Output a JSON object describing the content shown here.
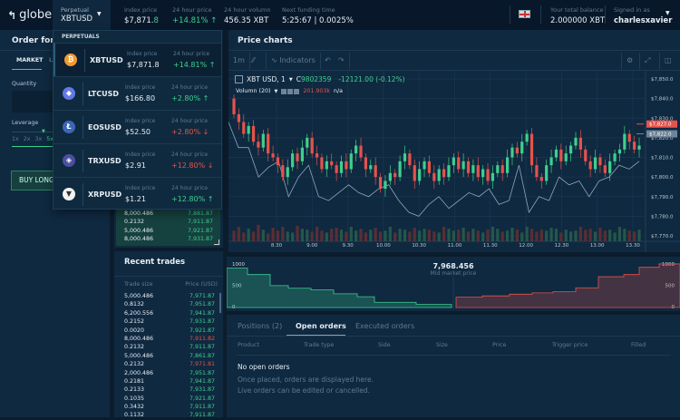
{
  "topbar": {
    "logo": "globe",
    "selector": {
      "label": "Perpetual",
      "value": "XBTUSD"
    },
    "stats": [
      {
        "label": "Index price",
        "value_main": "$7,871.",
        "value_tail": "8"
      },
      {
        "label": "24 hour price",
        "value": "+14.81% ↑"
      },
      {
        "label": "24 hour volumn",
        "value": "456.35 XBT"
      },
      {
        "label": "Next funding time",
        "value": "5:25:67 | 0.0025%"
      }
    ],
    "balance": {
      "label": "Your total balance",
      "value": "2.000000 XBT"
    },
    "user": {
      "label": "Signed in as",
      "value": "charlesxavier"
    }
  },
  "dropdown": {
    "header": "PERPETUALS",
    "items": [
      {
        "symbol": "XBTUSD",
        "index_label": "Index price",
        "index": "$7,871.8",
        "change_label": "24 hour price",
        "change": "+14.81%",
        "arrow": "↑",
        "dir": "up",
        "icon": "bitcoin-icon",
        "glyph": "₿",
        "color": "#f29a2e"
      },
      {
        "symbol": "LTCUSD",
        "index_label": "Index price",
        "index": "$166.80",
        "change_label": "24 hour price",
        "change": "+2.80%",
        "arrow": "↑",
        "dir": "up",
        "icon": "ethereum-icon",
        "glyph": "◆",
        "color": "#6479e6"
      },
      {
        "symbol": "EOSUSD",
        "index_label": "Index price",
        "index": "$52.50",
        "change_label": "24 hour price",
        "change": "+2.80%",
        "arrow": "↓",
        "dir": "down",
        "icon": "litecoin-icon",
        "glyph": "Ł",
        "color": "#3d66b8"
      },
      {
        "symbol": "TRXUSD",
        "index_label": "Index price",
        "index": "$2.91",
        "change_label": "24 hour price",
        "change": "+12.80%",
        "arrow": "↓",
        "dir": "down",
        "icon": "tron-icon",
        "glyph": "◈",
        "color": "#4a4fa0"
      },
      {
        "symbol": "XRPUSD",
        "index_label": "Index price",
        "index": "$1.21",
        "change_label": "24 hour price",
        "change": "+12.80%",
        "arrow": "↑",
        "dir": "up",
        "icon": "xrp-icon",
        "glyph": "▼",
        "color": "#f2f2f2"
      }
    ]
  },
  "order_form": {
    "title": "Order form",
    "tabs": [
      "MARKET",
      "LIMIT"
    ],
    "quantity_label": "Quantity",
    "leverage_label": "Leverage",
    "leverage_options": [
      "1x",
      "2x",
      "3x",
      "5x"
    ],
    "leverage_selected": "5x",
    "buy_label": "BUY LONG"
  },
  "order_book": {
    "rows": [
      {
        "size": "8,000.486",
        "price": "7,881.87"
      },
      {
        "size": "0.2132",
        "price": "7,911.87"
      },
      {
        "size": "5,000.486",
        "price": "7,921.87"
      },
      {
        "size": "8,000.486",
        "price": "7,931.87"
      }
    ]
  },
  "recent_trades": {
    "title": "Recent trades",
    "col_size": "Trade size",
    "col_price": "Price (USD)",
    "rows": [
      {
        "size": "5,000.486",
        "price": "7,971.87",
        "dir": "up"
      },
      {
        "size": "0.8132",
        "price": "7,951.87",
        "dir": "up"
      },
      {
        "size": "6,200.556",
        "price": "7,941.87",
        "dir": "up"
      },
      {
        "size": "0.2152",
        "price": "7,931.87",
        "dir": "up"
      },
      {
        "size": "0.0020",
        "price": "7,921.87",
        "dir": "up"
      },
      {
        "size": "8,000.486",
        "price": "7,911.82",
        "dir": "down"
      },
      {
        "size": "0.2132",
        "price": "7,911.87",
        "dir": "up"
      },
      {
        "size": "5,000.486",
        "price": "7,861.87",
        "dir": "up"
      },
      {
        "size": "0.2132",
        "price": "7,971.81",
        "dir": "down"
      },
      {
        "size": "2,000.486",
        "price": "7,951.87",
        "dir": "up"
      },
      {
        "size": "0.2181",
        "price": "7,941.87",
        "dir": "up"
      },
      {
        "size": "0.2133",
        "price": "7,931.87",
        "dir": "up"
      },
      {
        "size": "0.1035",
        "price": "7,921.87",
        "dir": "up"
      },
      {
        "size": "0.3432",
        "price": "7,911.87",
        "dir": "up"
      },
      {
        "size": "0.1132",
        "price": "7,911.87",
        "dir": "up"
      }
    ]
  },
  "price_chart": {
    "title": "Price charts",
    "toolbar": {
      "interval": "1m",
      "indicators": "Indicators"
    },
    "legend": {
      "symbol": "XBT USD, 1",
      "close_prefix": "C",
      "close": "9802359",
      "change": "-12121.00 (-0.12%)",
      "volume": "Volumn (20)",
      "volume_value": "201.903k",
      "volume_na": "n/a"
    },
    "colors": {
      "up": "#3fcf8e",
      "down": "#e5534b",
      "line": "#8fa7bd"
    }
  },
  "chart_data": {
    "type": "candlestick",
    "ylim": [
      7770,
      7852
    ],
    "y_ticks": [
      "$7,850.0",
      "$7,840.0",
      "$7,830.0",
      "$7,820.0",
      "$7,810.0",
      "$7,800.0",
      "$7,790.0",
      "$7,780.0",
      "$7,770.0"
    ],
    "y_tick_values": [
      7850,
      7840,
      7830,
      7820,
      7810,
      7800,
      7790,
      7780,
      7770
    ],
    "x_ticks": [
      "8.30",
      "9.00",
      "9.30",
      "10.00",
      "10.30",
      "11.00",
      "11.30",
      "12.00",
      "12.30",
      "13.00",
      "13.30"
    ],
    "price_tags": [
      {
        "label": "$7,827.0",
        "value": 7827,
        "color": "#e5534b"
      },
      {
        "label": "$7,822.0",
        "value": 7822,
        "color": "#6f8497"
      }
    ],
    "closes": [
      7832,
      7828,
      7822,
      7826,
      7818,
      7815,
      7822,
      7812,
      7810,
      7806,
      7800,
      7805,
      7812,
      7808,
      7815,
      7820,
      7812,
      7810,
      7804,
      7808,
      7806,
      7802,
      7808,
      7804,
      7812,
      7816,
      7810,
      7804,
      7806,
      7800,
      7794,
      7798,
      7802,
      7800,
      7808,
      7812,
      7806,
      7798,
      7804,
      7808,
      7802,
      7798,
      7804,
      7800,
      7806,
      7810,
      7804,
      7808,
      7802,
      7806,
      7800,
      7804,
      7798,
      7802,
      7806,
      7802,
      7810,
      7815,
      7812,
      7818,
      7822,
      7806,
      7800,
      7798,
      7806,
      7810,
      7814,
      7808,
      7812,
      7816,
      7820,
      7814,
      7808,
      7804,
      7810,
      7806,
      7802,
      7808,
      7812,
      7814,
      7822,
      7818,
      7814,
      7816
    ],
    "open_first": 7840,
    "line": [
      7828,
      7815,
      7815,
      7800,
      7805,
      7808,
      7790,
      7800,
      7806,
      7790,
      7788,
      7792,
      7796,
      7792,
      7790,
      7794,
      7796,
      7788,
      7782,
      7780,
      7786,
      7790,
      7784,
      7788,
      7792,
      7790,
      7794,
      7786,
      7788,
      7806,
      7782,
      7790,
      7788,
      7800,
      7796,
      7798,
      7790,
      7798,
      7800,
      7806,
      7804,
      7808
    ],
    "volume": [
      22,
      30,
      18,
      26,
      20,
      34,
      24,
      16,
      28,
      22,
      30,
      20,
      18,
      32,
      26,
      24,
      20,
      30,
      22,
      18,
      26,
      28,
      24,
      20,
      30,
      22,
      26,
      18,
      24,
      28,
      20,
      22,
      30,
      18,
      26,
      24,
      20,
      28,
      22,
      26,
      24,
      20,
      18,
      30,
      26,
      22,
      24,
      28,
      20,
      26,
      22,
      18,
      24,
      30,
      26,
      20,
      22,
      28,
      24,
      18,
      30,
      26,
      20,
      24,
      22,
      28,
      26,
      18,
      24,
      20,
      22,
      30,
      24,
      26,
      20,
      28,
      22,
      24,
      18,
      30,
      26,
      22,
      20,
      24
    ]
  },
  "depth_chart": {
    "mid_price": "7,968.456",
    "mid_label": "Mid market price",
    "y_ticks": [
      "1000",
      "500",
      "0"
    ],
    "y_tick_values": [
      1000,
      500,
      0
    ],
    "bids": [
      880,
      730,
      470,
      410,
      370,
      280,
      210,
      80,
      30
    ],
    "asks": [
      200,
      230,
      270,
      300,
      330,
      420,
      680,
      730,
      900,
      980
    ],
    "colors": {
      "bid": "#3fcf8e",
      "ask": "#e5534b"
    }
  },
  "orders": {
    "tabs": [
      "Positions (2)",
      "Open orders",
      "Executed orders"
    ],
    "active_tab": "Open orders",
    "columns": [
      "Product",
      "Trade type",
      "Side",
      "Size",
      "Price",
      "Trigger price",
      "Filled"
    ],
    "empty_title": "No open orders",
    "empty_line1": "Once placed, orders are displayed here.",
    "empty_line2": "Live orders can be edited or cancelled."
  }
}
